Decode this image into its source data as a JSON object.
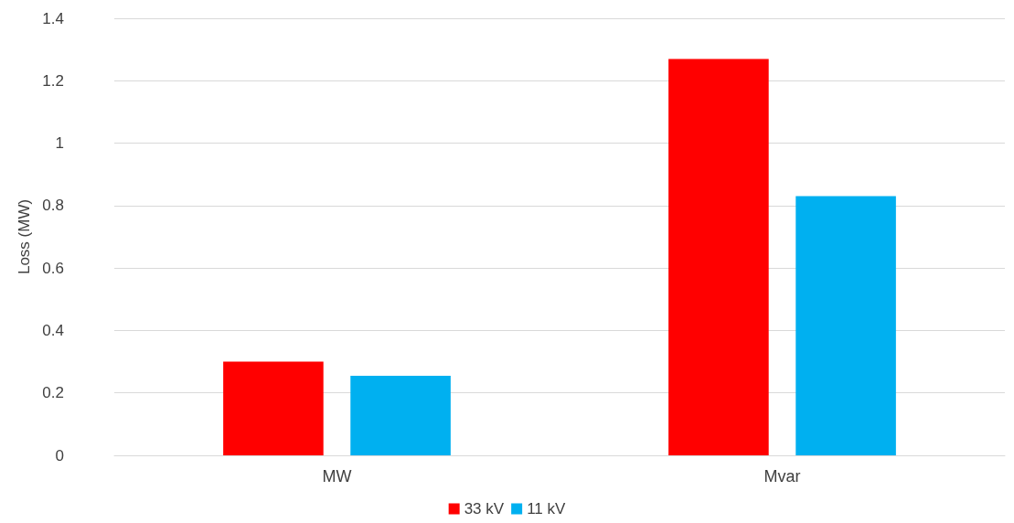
{
  "chart_data": {
    "type": "bar",
    "ylabel": "Loss (MW)",
    "categories": [
      "MW",
      "Mvar"
    ],
    "series": [
      {
        "name": "33 kV",
        "color": "#ff0000",
        "values": [
          0.3,
          1.27
        ]
      },
      {
        "name": "11 kV",
        "color": "#00b0f0",
        "values": [
          0.255,
          0.83
        ]
      }
    ],
    "ylim": [
      0,
      1.4
    ],
    "yticks": [
      0,
      0.2,
      0.4,
      0.6,
      0.8,
      1,
      1.2,
      1.4
    ],
    "grid": "y",
    "legend": "bottom"
  }
}
